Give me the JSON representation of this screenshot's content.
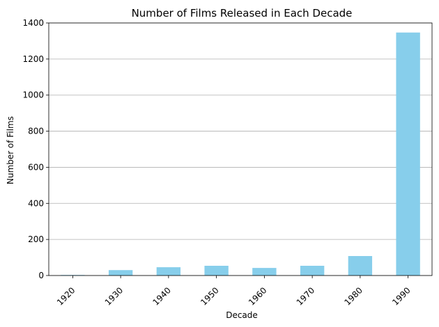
{
  "chart_data": {
    "type": "bar",
    "title": "Number of Films Released in Each Decade",
    "xlabel": "Decade",
    "ylabel": "Number of Films",
    "categories": [
      "1920",
      "1930",
      "1940",
      "1950",
      "1960",
      "1970",
      "1980",
      "1990"
    ],
    "values": [
      3,
      30,
      46,
      54,
      42,
      54,
      108,
      1347
    ],
    "ylim": [
      0,
      1400
    ],
    "yticks": [
      0,
      200,
      400,
      600,
      800,
      1000,
      1200,
      1400
    ],
    "grid": "y-axis",
    "bar_color": "#87ceeb"
  }
}
